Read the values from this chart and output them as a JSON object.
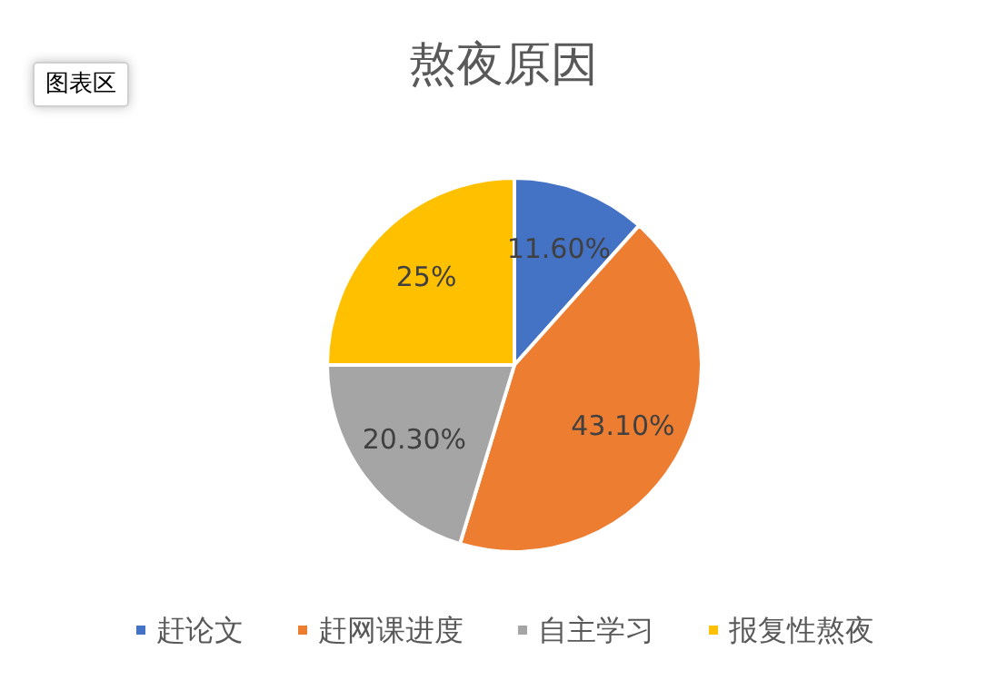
{
  "chart_data": {
    "type": "pie",
    "title": "熬夜原因",
    "categories": [
      "赶论文",
      "赶网课进度",
      "自主学习",
      "报复性熬夜"
    ],
    "values": [
      11.6,
      43.1,
      20.3,
      25
    ],
    "value_labels": [
      "11.60%",
      "43.10%",
      "20.30%",
      "25%"
    ],
    "colors": [
      "#4472c4",
      "#ed7d31",
      "#a5a5a5",
      "#ffc000"
    ],
    "legend": "bottom",
    "annotations": [
      "图表区"
    ]
  }
}
